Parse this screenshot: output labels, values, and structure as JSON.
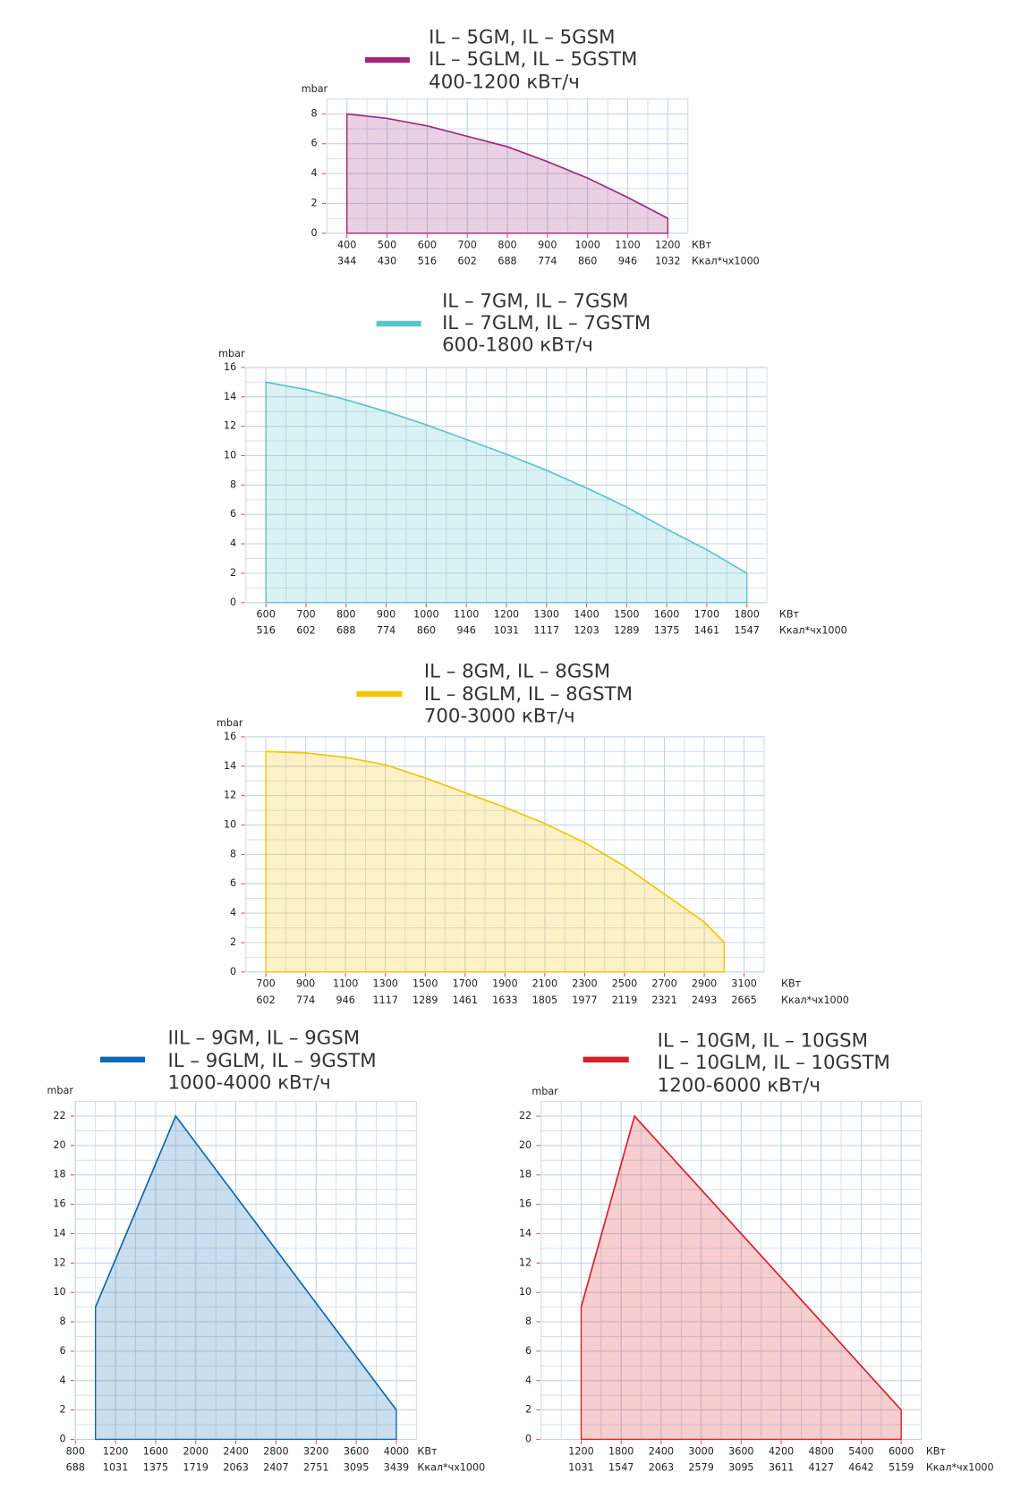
{
  "chart_data": [
    {
      "type": "area",
      "ylabel": "mbar",
      "xlabel": "КВт",
      "xlabel2": "Ккал*чх1000",
      "grid": true,
      "xlim": [
        350,
        1250
      ],
      "ylim": [
        0,
        9
      ],
      "xticks": [
        400,
        500,
        600,
        700,
        800,
        900,
        1000,
        1100,
        1200
      ],
      "xticks2": [
        344,
        430,
        516,
        602,
        688,
        774,
        860,
        946,
        1032
      ],
      "yticks": [
        0,
        2,
        4,
        6,
        8
      ],
      "series": [
        {
          "name": [
            "IL – 5GM, IL – 5GSM",
            "IL – 5GLM, IL – 5GSTM",
            "400-1200 кВт/ч"
          ],
          "color": "#a0287f",
          "x": [
            400,
            500,
            600,
            700,
            800,
            900,
            1000,
            1100,
            1200
          ],
          "values": [
            8,
            7.7,
            7.2,
            6.5,
            5.8,
            4.8,
            3.7,
            2.4,
            1
          ]
        }
      ]
    },
    {
      "type": "area",
      "ylabel": "mbar",
      "xlabel": "КВт",
      "xlabel2": "Ккал*чх1000",
      "grid": true,
      "xlim": [
        550,
        1850
      ],
      "ylim": [
        0,
        16
      ],
      "xticks": [
        600,
        700,
        800,
        900,
        1000,
        1100,
        1200,
        1300,
        1400,
        1500,
        1600,
        1700,
        1800
      ],
      "xticks2": [
        516,
        602,
        688,
        774,
        860,
        946,
        1031,
        1117,
        1203,
        1289,
        1375,
        1461,
        1547
      ],
      "yticks": [
        0,
        2,
        4,
        6,
        8,
        10,
        12,
        14,
        16
      ],
      "series": [
        {
          "name": [
            "IL – 7GM, IL – 7GSM",
            "IL – 7GLM, IL – 7GSTM",
            "600-1800 кВт/ч"
          ],
          "color": "#5bc4cc",
          "x": [
            600,
            700,
            800,
            900,
            1000,
            1100,
            1200,
            1300,
            1400,
            1500,
            1600,
            1700,
            1800
          ],
          "values": [
            15,
            14.5,
            13.8,
            13,
            12.1,
            11.1,
            10.1,
            9,
            7.8,
            6.5,
            5,
            3.6,
            2
          ]
        }
      ]
    },
    {
      "type": "area",
      "ylabel": "mbar",
      "xlabel": "КВт",
      "xlabel2": "Ккал*чх1000",
      "grid": true,
      "xlim": [
        600,
        3200
      ],
      "ylim": [
        0,
        16
      ],
      "xticks": [
        700,
        900,
        1100,
        1300,
        1500,
        1700,
        1900,
        2100,
        2300,
        2500,
        2700,
        2900,
        3100
      ],
      "xticks2": [
        602,
        774,
        946,
        1117,
        1289,
        1461,
        1633,
        1805,
        1977,
        2119,
        2321,
        2493,
        2665
      ],
      "yticks": [
        0,
        2,
        4,
        6,
        8,
        10,
        12,
        14,
        16
      ],
      "series": [
        {
          "name": [
            "IL – 8GM, IL – 8GSM",
            "IL – 8GLM, IL – 8GSTM",
            "700-3000 кВт/ч"
          ],
          "color": "#f5c400",
          "x": [
            700,
            900,
            1100,
            1300,
            1500,
            1700,
            1900,
            2100,
            2300,
            2500,
            2700,
            2900,
            3000
          ],
          "values": [
            15,
            14.9,
            14.6,
            14.1,
            13.2,
            12.2,
            11.2,
            10.1,
            8.8,
            7.2,
            5.3,
            3.4,
            2
          ]
        }
      ]
    },
    {
      "type": "area",
      "ylabel": "mbar",
      "xlabel": "КВт",
      "xlabel2": "Ккал*чх1000",
      "grid": true,
      "xlim": [
        800,
        4200
      ],
      "ylim": [
        0,
        23
      ],
      "xticks": [
        800,
        1200,
        1600,
        2000,
        2400,
        2800,
        3200,
        3600,
        4000
      ],
      "xticks2": [
        688,
        1031,
        1375,
        1719,
        2063,
        2407,
        2751,
        3095,
        3439
      ],
      "yticks": [
        0,
        2,
        4,
        6,
        8,
        10,
        12,
        14,
        16,
        18,
        20,
        22
      ],
      "series": [
        {
          "name": [
            "IIL – 9GM, IL – 9GSM",
            "IL – 9GLM, IL – 9GSTM",
            "1000-4000 кВт/ч"
          ],
          "color": "#0e67b0",
          "x": [
            1000,
            1800,
            4000
          ],
          "values": [
            9,
            22,
            2
          ]
        }
      ]
    },
    {
      "type": "area",
      "ylabel": "mbar",
      "xlabel": "КВт",
      "xlabel2": "Ккал*чх1000",
      "grid": true,
      "xlim": [
        600,
        6300
      ],
      "ylim": [
        0,
        23
      ],
      "xticks": [
        1200,
        1800,
        2400,
        3000,
        3600,
        4200,
        4800,
        5400,
        6000
      ],
      "xticks2": [
        1031,
        1547,
        2063,
        2579,
        3095,
        3611,
        4127,
        4642,
        5159
      ],
      "yticks": [
        0,
        2,
        4,
        6,
        8,
        10,
        12,
        14,
        16,
        18,
        20,
        22
      ],
      "series": [
        {
          "name": [
            "IL – 10GM, IL – 10GSM",
            "IL – 10GLM, IL – 10GSTM",
            "1200-6000 кВт/ч"
          ],
          "color": "#d7202a",
          "x": [
            1200,
            2000,
            6000
          ],
          "values": [
            9,
            22,
            2
          ]
        }
      ]
    }
  ]
}
